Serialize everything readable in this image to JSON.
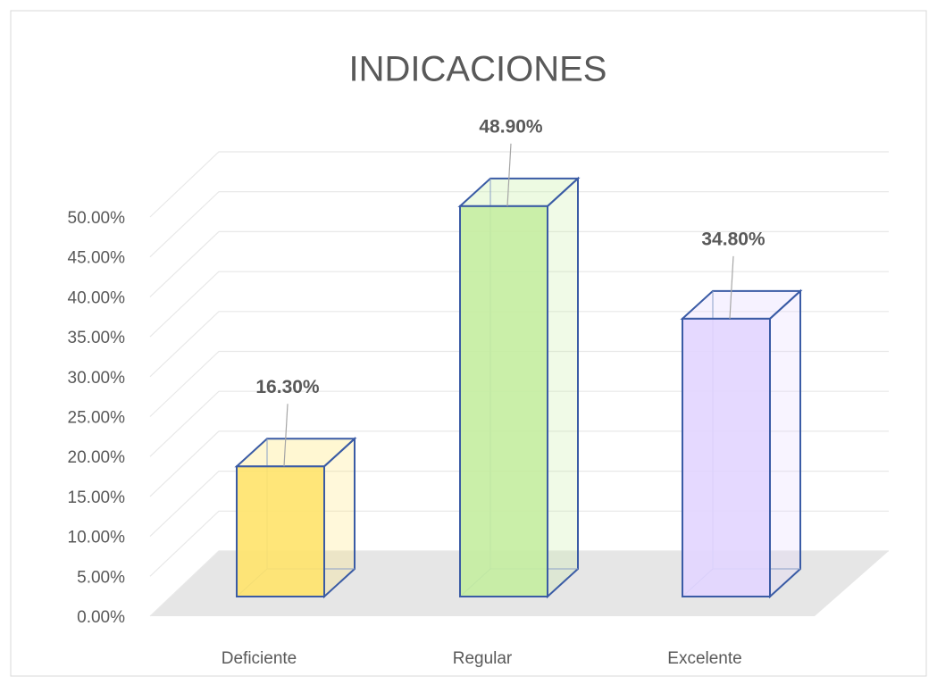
{
  "chart_data": {
    "type": "bar3d",
    "title": "INDICACIONES",
    "categories": [
      "Deficiente",
      "Regular",
      "Excelente"
    ],
    "values": [
      16.3,
      48.9,
      34.8
    ],
    "value_labels": [
      "16.30%",
      "48.90%",
      "34.80%"
    ],
    "colors": [
      "#ffe36a",
      "#c4eda0",
      "#e2d5ff"
    ],
    "ylim": [
      0,
      50
    ],
    "yticks": [
      {
        "value": 0,
        "label": "0.00%"
      },
      {
        "value": 5,
        "label": "5.00%"
      },
      {
        "value": 10,
        "label": "10.00%"
      },
      {
        "value": 15,
        "label": "15.00%"
      },
      {
        "value": 20,
        "label": "20.00%"
      },
      {
        "value": 25,
        "label": "25.00%"
      },
      {
        "value": 30,
        "label": "30.00%"
      },
      {
        "value": 35,
        "label": "35.00%"
      },
      {
        "value": 40,
        "label": "40.00%"
      },
      {
        "value": 45,
        "label": "45.00%"
      },
      {
        "value": 50,
        "label": "50.00%"
      }
    ],
    "grid": true
  }
}
